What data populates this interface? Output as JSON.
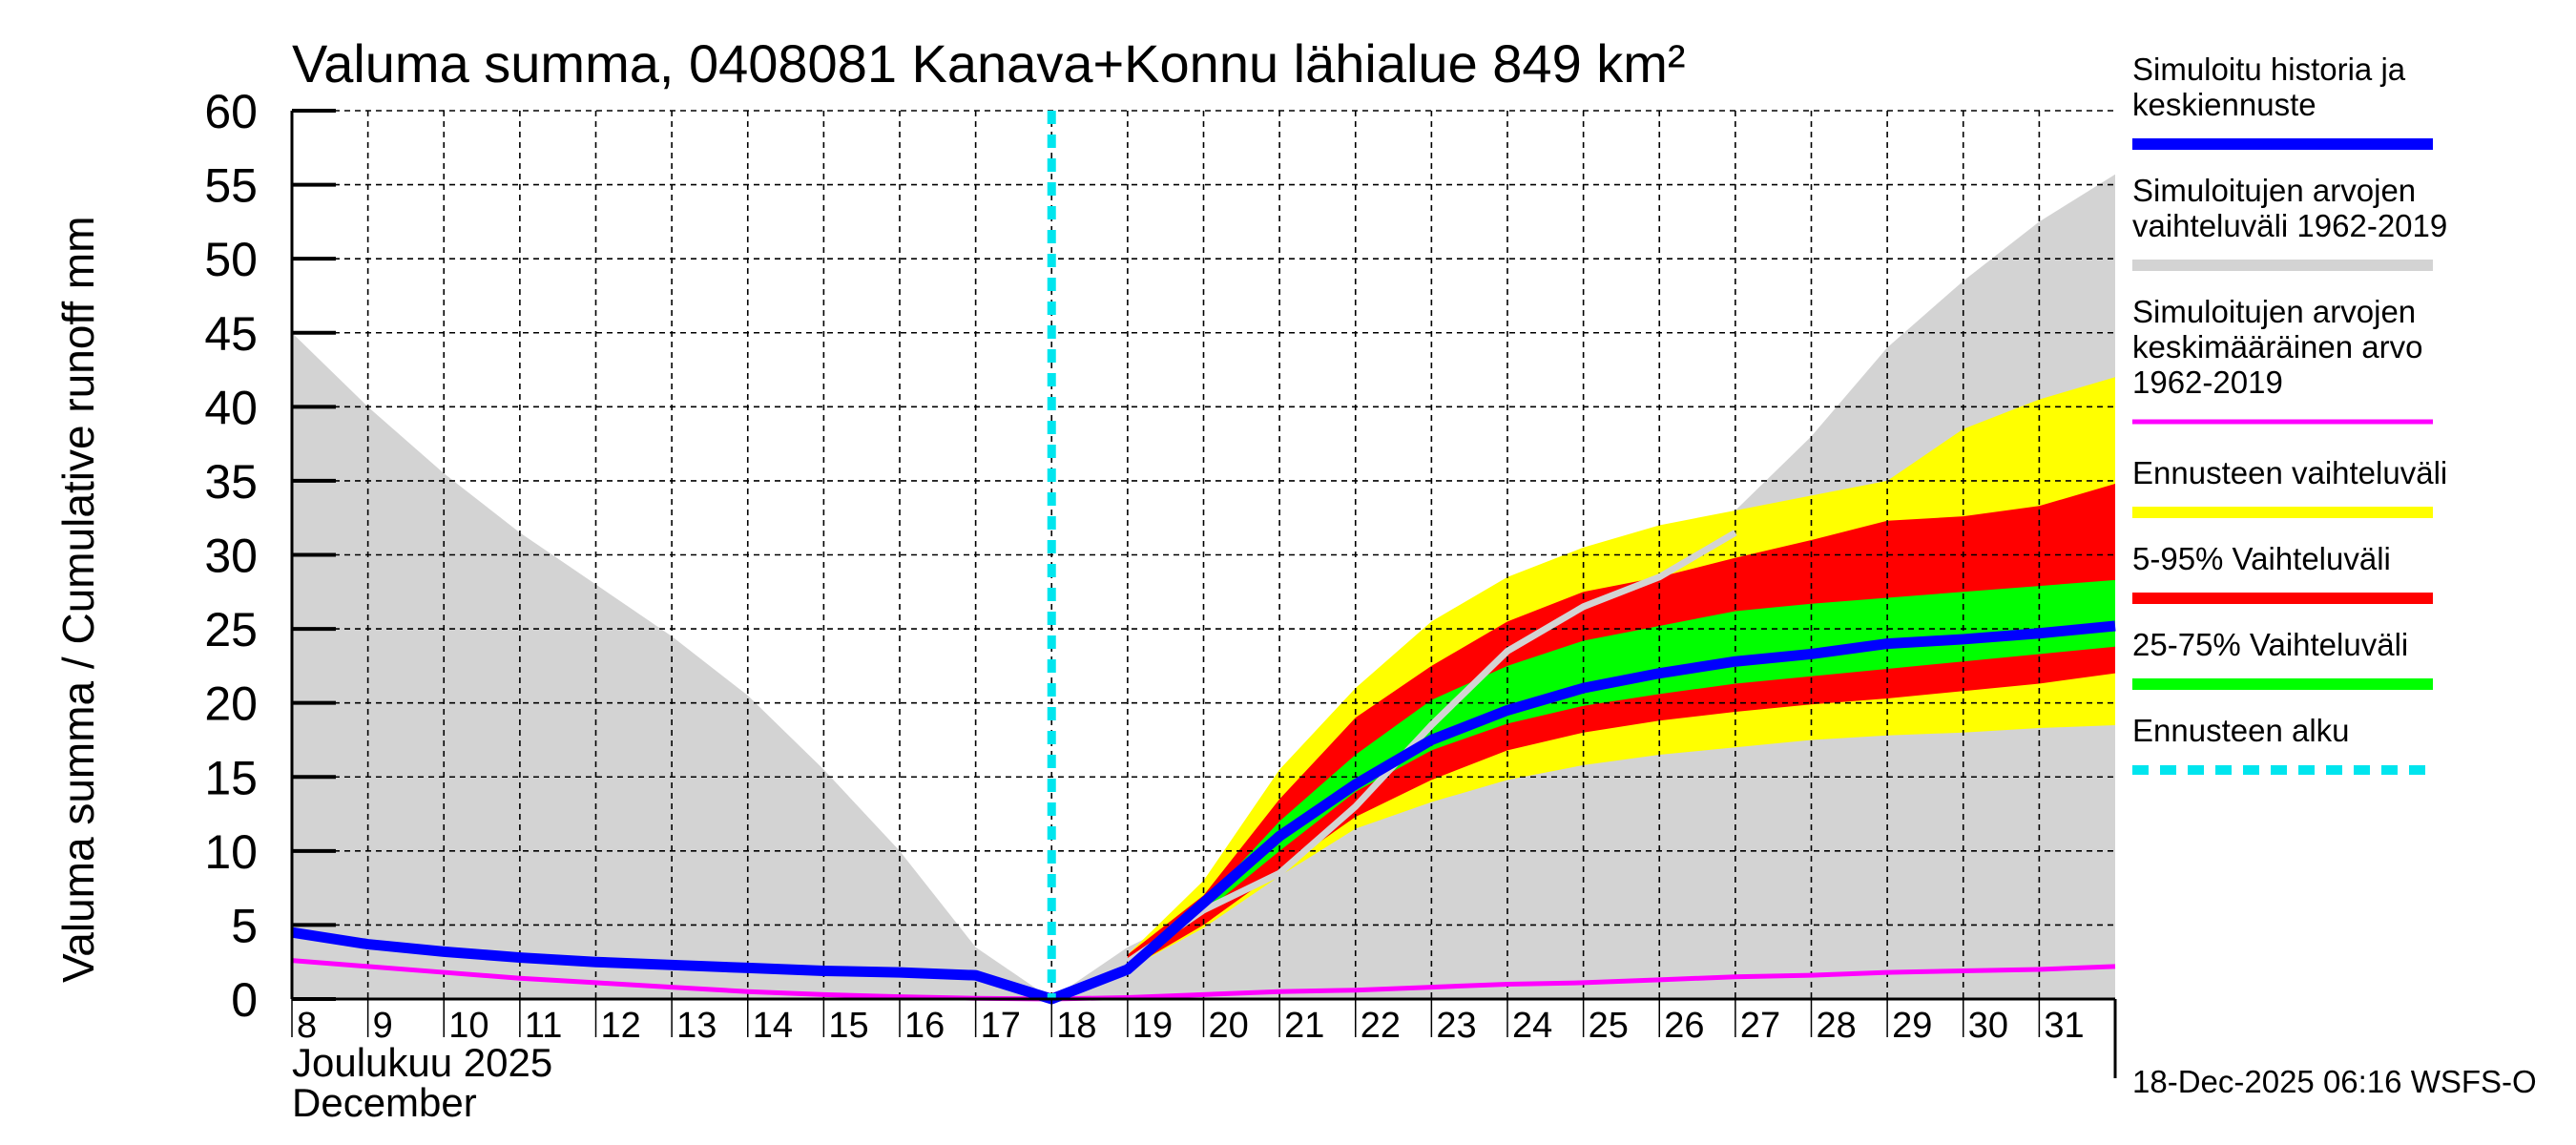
{
  "chart_data": {
    "type": "area",
    "title": "Valuma summa, 0408081 Kanava+Konnu lähialue 849 km²",
    "ylabel": "Valuma summa / Cumulative runoff    mm",
    "xlabel_line1": "Joulukuu  2025",
    "xlabel_line2": "December",
    "ylim": [
      0,
      60
    ],
    "yticks": [
      0,
      5,
      10,
      15,
      20,
      25,
      30,
      35,
      40,
      45,
      50,
      55,
      60
    ],
    "xlim": [
      8,
      32
    ],
    "xtick_labels": [
      "8",
      "9",
      "10",
      "11",
      "12",
      "13",
      "14",
      "15",
      "16",
      "17",
      "18",
      "19",
      "20",
      "21",
      "22",
      "23",
      "24",
      "25",
      "26",
      "27",
      "28",
      "29",
      "30",
      "31"
    ],
    "grid": true,
    "forecast_start_day": 18,
    "colors": {
      "history": "#0000ff",
      "sim_range": "#d3d3d3",
      "sim_mean": "#ff00ff",
      "forecast_range": "#ffff00",
      "p5_95": "#ff0000",
      "p25_75": "#00ff00",
      "forecast_start": "#00e5ee"
    },
    "series": {
      "sim_range_upper": {
        "x": [
          8,
          9,
          10,
          11,
          12,
          13,
          14,
          15,
          16,
          17,
          18,
          19,
          20,
          21,
          22,
          23,
          24,
          25,
          26,
          27,
          28,
          29,
          30,
          31,
          32
        ],
        "y": [
          45,
          40,
          35.5,
          31.5,
          28,
          24.5,
          20.5,
          15.5,
          10,
          3.5,
          0,
          3.5,
          6,
          9,
          14,
          19,
          23.5,
          26.5,
          29,
          33,
          38,
          44,
          48.5,
          52.5,
          55.7
        ]
      },
      "sim_year_line": {
        "x": [
          19,
          20,
          21,
          22,
          23,
          24,
          25,
          26,
          27
        ],
        "y": [
          2.5,
          6,
          8.5,
          13,
          18.5,
          23.5,
          26.5,
          28.5,
          31.5
        ]
      },
      "forecast_range": {
        "x": [
          19,
          20,
          21,
          22,
          23,
          24,
          25,
          26,
          27,
          28,
          29,
          30,
          31,
          32
        ],
        "upper": [
          3,
          8,
          15.5,
          21,
          25.5,
          28.5,
          30.5,
          32,
          33,
          34,
          35,
          38.5,
          40.5,
          42
        ],
        "lower": [
          2,
          4.8,
          8.3,
          11.5,
          13.3,
          14.8,
          15.8,
          16.5,
          17,
          17.5,
          17.8,
          18,
          18.3,
          18.5
        ]
      },
      "p5_95": {
        "x": [
          19,
          20,
          21,
          22,
          23,
          24,
          25,
          26,
          27,
          28,
          29,
          30,
          31,
          32
        ],
        "upper": [
          3,
          7,
          13.5,
          19,
          22.5,
          25.5,
          27.5,
          28.5,
          29.8,
          31,
          32.3,
          32.6,
          33.3,
          34.8
        ],
        "lower": [
          2,
          5,
          8.7,
          12.3,
          14.8,
          16.8,
          18,
          18.8,
          19.4,
          19.9,
          20.3,
          20.8,
          21.3,
          22
        ]
      },
      "p25_75": {
        "x": [
          19,
          20,
          21,
          22,
          23,
          24,
          25,
          26,
          27,
          28,
          29,
          30,
          31,
          32
        ],
        "upper": [
          2.5,
          6.5,
          12,
          16.5,
          20.2,
          22.5,
          24.2,
          25.2,
          26.2,
          26.7,
          27.1,
          27.5,
          27.9,
          28.3
        ],
        "lower": [
          2.2,
          5.8,
          10,
          14,
          16.8,
          18.6,
          19.8,
          20.6,
          21.3,
          21.8,
          22.3,
          22.8,
          23.3,
          23.8
        ]
      },
      "history_median": {
        "name": "Simuloitu historia ja keskiennuste",
        "x": [
          8,
          9,
          10,
          11,
          12,
          13,
          14,
          15,
          16,
          17,
          18,
          19,
          20,
          21,
          22,
          23,
          24,
          25,
          26,
          27,
          28,
          29,
          30,
          31,
          32
        ],
        "y": [
          4.5,
          3.7,
          3.2,
          2.8,
          2.5,
          2.3,
          2.1,
          1.9,
          1.8,
          1.6,
          0,
          2,
          6.5,
          11,
          14.5,
          17.5,
          19.5,
          21,
          22,
          22.8,
          23.3,
          24,
          24.3,
          24.7,
          25.2
        ]
      },
      "sim_mean": {
        "name": "Simuloitujen arvojen keskimääräinen arvo 1962-2019",
        "x": [
          8,
          9,
          10,
          11,
          12,
          13,
          14,
          15,
          16,
          17,
          18,
          19,
          20,
          21,
          22,
          23,
          24,
          25,
          26,
          27,
          28,
          29,
          30,
          31,
          32
        ],
        "y": [
          2.6,
          2.2,
          1.8,
          1.4,
          1.1,
          0.8,
          0.5,
          0.3,
          0.15,
          0.05,
          0,
          0.1,
          0.3,
          0.5,
          0.6,
          0.8,
          1.0,
          1.1,
          1.3,
          1.5,
          1.6,
          1.8,
          1.9,
          2.0,
          2.2
        ]
      }
    },
    "legend": {
      "placement": "right",
      "items": [
        {
          "label_lines": [
            "Simuloitu historia ja",
            "keskiennuste"
          ],
          "color": "#0000ff",
          "style": "solid"
        },
        {
          "label_lines": [
            "Simuloitujen arvojen",
            "vaihteluväli 1962-2019"
          ],
          "color": "#d3d3d3",
          "style": "solid"
        },
        {
          "label_lines": [
            "Simuloitujen arvojen",
            "keskimääräinen arvo",
            "   1962-2019"
          ],
          "color": "#ff00ff",
          "style": "thin"
        },
        {
          "label_lines": [
            "Ennusteen vaihteluväli"
          ],
          "color": "#ffff00",
          "style": "solid"
        },
        {
          "label_lines": [
            "5-95% Vaihteluväli"
          ],
          "color": "#ff0000",
          "style": "solid"
        },
        {
          "label_lines": [
            "25-75% Vaihteluväli"
          ],
          "color": "#00ff00",
          "style": "solid"
        },
        {
          "label_lines": [
            "Ennusteen alku"
          ],
          "color": "#00e5ee",
          "style": "dashed"
        }
      ]
    },
    "footer": "18-Dec-2025 06:16 WSFS-O"
  }
}
